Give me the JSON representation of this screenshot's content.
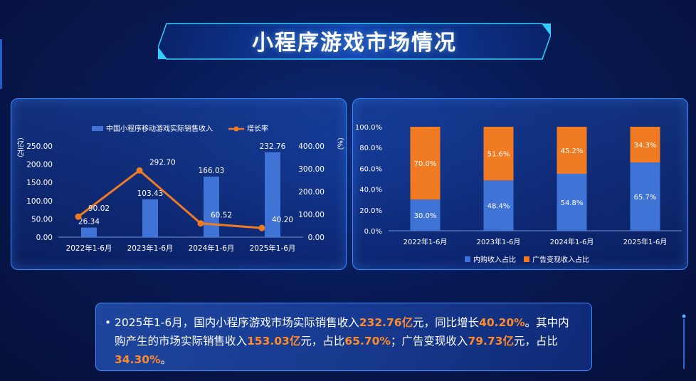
{
  "title": "小程序游戏市场情况",
  "chart_data": [
    {
      "type": "bar",
      "categories": [
        "2022年1-6月",
        "2023年1-6月",
        "2024年1-6月",
        "2025年1-6月"
      ],
      "series": [
        {
          "name": "中国小程序移动游戏实际销售收入",
          "type": "bar",
          "axis": "left",
          "values": [
            26.34,
            103.43,
            166.03,
            232.76
          ],
          "labels": [
            "26.34",
            "103.43",
            "166.03",
            "232.76"
          ]
        },
        {
          "name": "增长率",
          "type": "line",
          "axis": "right",
          "values": [
            90.02,
            292.7,
            60.52,
            40.2
          ],
          "labels": [
            "90.02",
            "292.70",
            "60.52",
            "40.20"
          ]
        }
      ],
      "ylabel": "（亿元）",
      "ylabel_right": "（%）",
      "ylim": [
        0,
        250
      ],
      "ylim_right": [
        0,
        400
      ],
      "yticks": [
        "0.00",
        "50.00",
        "100.00",
        "150.00",
        "200.00",
        "250.00"
      ],
      "yticks_right": [
        "0.00",
        "100.00",
        "200.00",
        "300.00",
        "400.00"
      ],
      "legend_position": "top",
      "colors": {
        "bar": "#3f74d6",
        "line": "#f07b22"
      }
    },
    {
      "type": "bar",
      "stacked": true,
      "categories": [
        "2022年1-6月",
        "2023年1-6月",
        "2024年1-6月",
        "2025年1-6月"
      ],
      "series": [
        {
          "name": "内购收入占比",
          "values": [
            30.0,
            48.4,
            54.8,
            65.7
          ],
          "labels": [
            "30.0%",
            "48.4%",
            "54.8%",
            "65.7%"
          ]
        },
        {
          "name": "广告变现收入占比",
          "values": [
            70.0,
            51.6,
            45.2,
            34.3
          ],
          "labels": [
            "70.0%",
            "51.6%",
            "45.2%",
            "34.3%"
          ]
        }
      ],
      "ylim": [
        0,
        100
      ],
      "yticks": [
        "0.0%",
        "20.0%",
        "40.0%",
        "60.0%",
        "80.0%",
        "100.0%"
      ],
      "legend_position": "bottom",
      "colors": {
        "内购收入占比": "#3f74d6",
        "广告变现收入占比": "#f07b22"
      }
    }
  ],
  "note": {
    "bullet": "•",
    "p1": "2025年1-6月，国内小程序游戏市场实际销售收入",
    "h1": "232.76亿",
    "p2": "元，同比增长",
    "h2": "40.20%",
    "p3": "。其中内购产生的市场实际销售收入",
    "h3": "153.03亿",
    "p4": "元，占比",
    "h4": "65.70%",
    "p5": "；广告变现收入",
    "h5": "79.73亿",
    "p6": "元，占比",
    "h6": "34.30%",
    "p7": "。"
  }
}
